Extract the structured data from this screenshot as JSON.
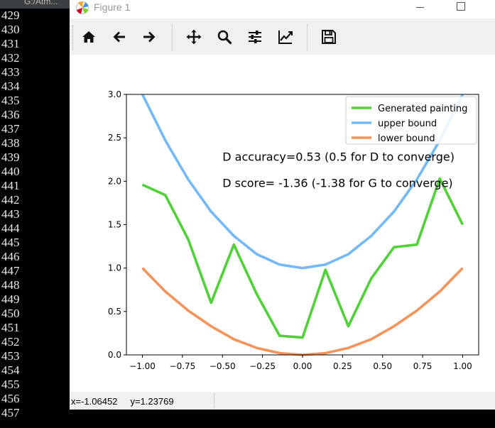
{
  "editor": {
    "tab_label": "G:/Atm...",
    "line_numbers": [
      "429",
      "430",
      "431",
      "432",
      "433",
      "434",
      "435",
      "436",
      "437",
      "438",
      "439",
      "440",
      "441",
      "442",
      "443",
      "444",
      "445",
      "446",
      "447",
      "448",
      "449",
      "450",
      "451",
      "452",
      "453",
      "454",
      "455",
      "456",
      "457"
    ]
  },
  "window": {
    "title": "Figure 1"
  },
  "toolbar": {
    "buttons": [
      {
        "name": "home-icon"
      },
      {
        "name": "back-arrow-icon"
      },
      {
        "name": "forward-arrow-icon"
      },
      {
        "name": "pan-icon"
      },
      {
        "name": "zoom-icon"
      },
      {
        "name": "configure-subplots-icon"
      },
      {
        "name": "edit-axis-icon"
      },
      {
        "name": "save-icon"
      }
    ]
  },
  "status": {
    "coords": "x=-1.06452     y=1.23769"
  },
  "chart_data": {
    "type": "line",
    "xlim": [
      -1.1,
      1.1
    ],
    "ylim": [
      0.0,
      3.0
    ],
    "xticks": [
      -1.0,
      -0.75,
      -0.5,
      -0.25,
      0.0,
      0.25,
      0.5,
      0.75,
      1.0
    ],
    "xtick_labels": [
      "−1.00",
      "−0.75",
      "−0.50",
      "−0.25",
      "0.00",
      "0.25",
      "0.50",
      "0.75",
      "1.00"
    ],
    "yticks": [
      0.0,
      0.5,
      1.0,
      1.5,
      2.0,
      2.5,
      3.0
    ],
    "ytick_labels": [
      "0.0",
      "0.5",
      "1.0",
      "1.5",
      "2.0",
      "2.5",
      "3.0"
    ],
    "x": [
      -1.0,
      -0.857,
      -0.714,
      -0.571,
      -0.429,
      -0.286,
      -0.143,
      0.0,
      0.143,
      0.286,
      0.429,
      0.571,
      0.714,
      0.857,
      1.0
    ],
    "series": [
      {
        "name": "Generated painting",
        "color": "#4fd137",
        "values": [
          1.96,
          1.84,
          1.33,
          0.6,
          1.27,
          0.7,
          0.22,
          0.2,
          0.98,
          0.33,
          0.88,
          1.24,
          1.27,
          2.03,
          1.5
        ]
      },
      {
        "name": "upper bound",
        "color": "#74b9f7",
        "values": [
          3.0,
          2.47,
          2.02,
          1.65,
          1.37,
          1.16,
          1.04,
          1.0,
          1.04,
          1.16,
          1.37,
          1.65,
          2.02,
          2.47,
          3.0
        ]
      },
      {
        "name": "lower bound",
        "color": "#f4935a",
        "values": [
          1.0,
          0.73,
          0.51,
          0.33,
          0.18,
          0.08,
          0.02,
          0.0,
          0.02,
          0.08,
          0.18,
          0.33,
          0.51,
          0.73,
          1.0
        ]
      }
    ],
    "legend_position": "top-right",
    "annotations": [
      {
        "text": "D accuracy=0.53 (0.5 for D to converge)",
        "x": -0.5,
        "y": 2.3
      },
      {
        "text": "D score= -1.36 (-1.38 for G to converge)",
        "x": -0.5,
        "y": 2.0
      }
    ],
    "grid": false
  }
}
